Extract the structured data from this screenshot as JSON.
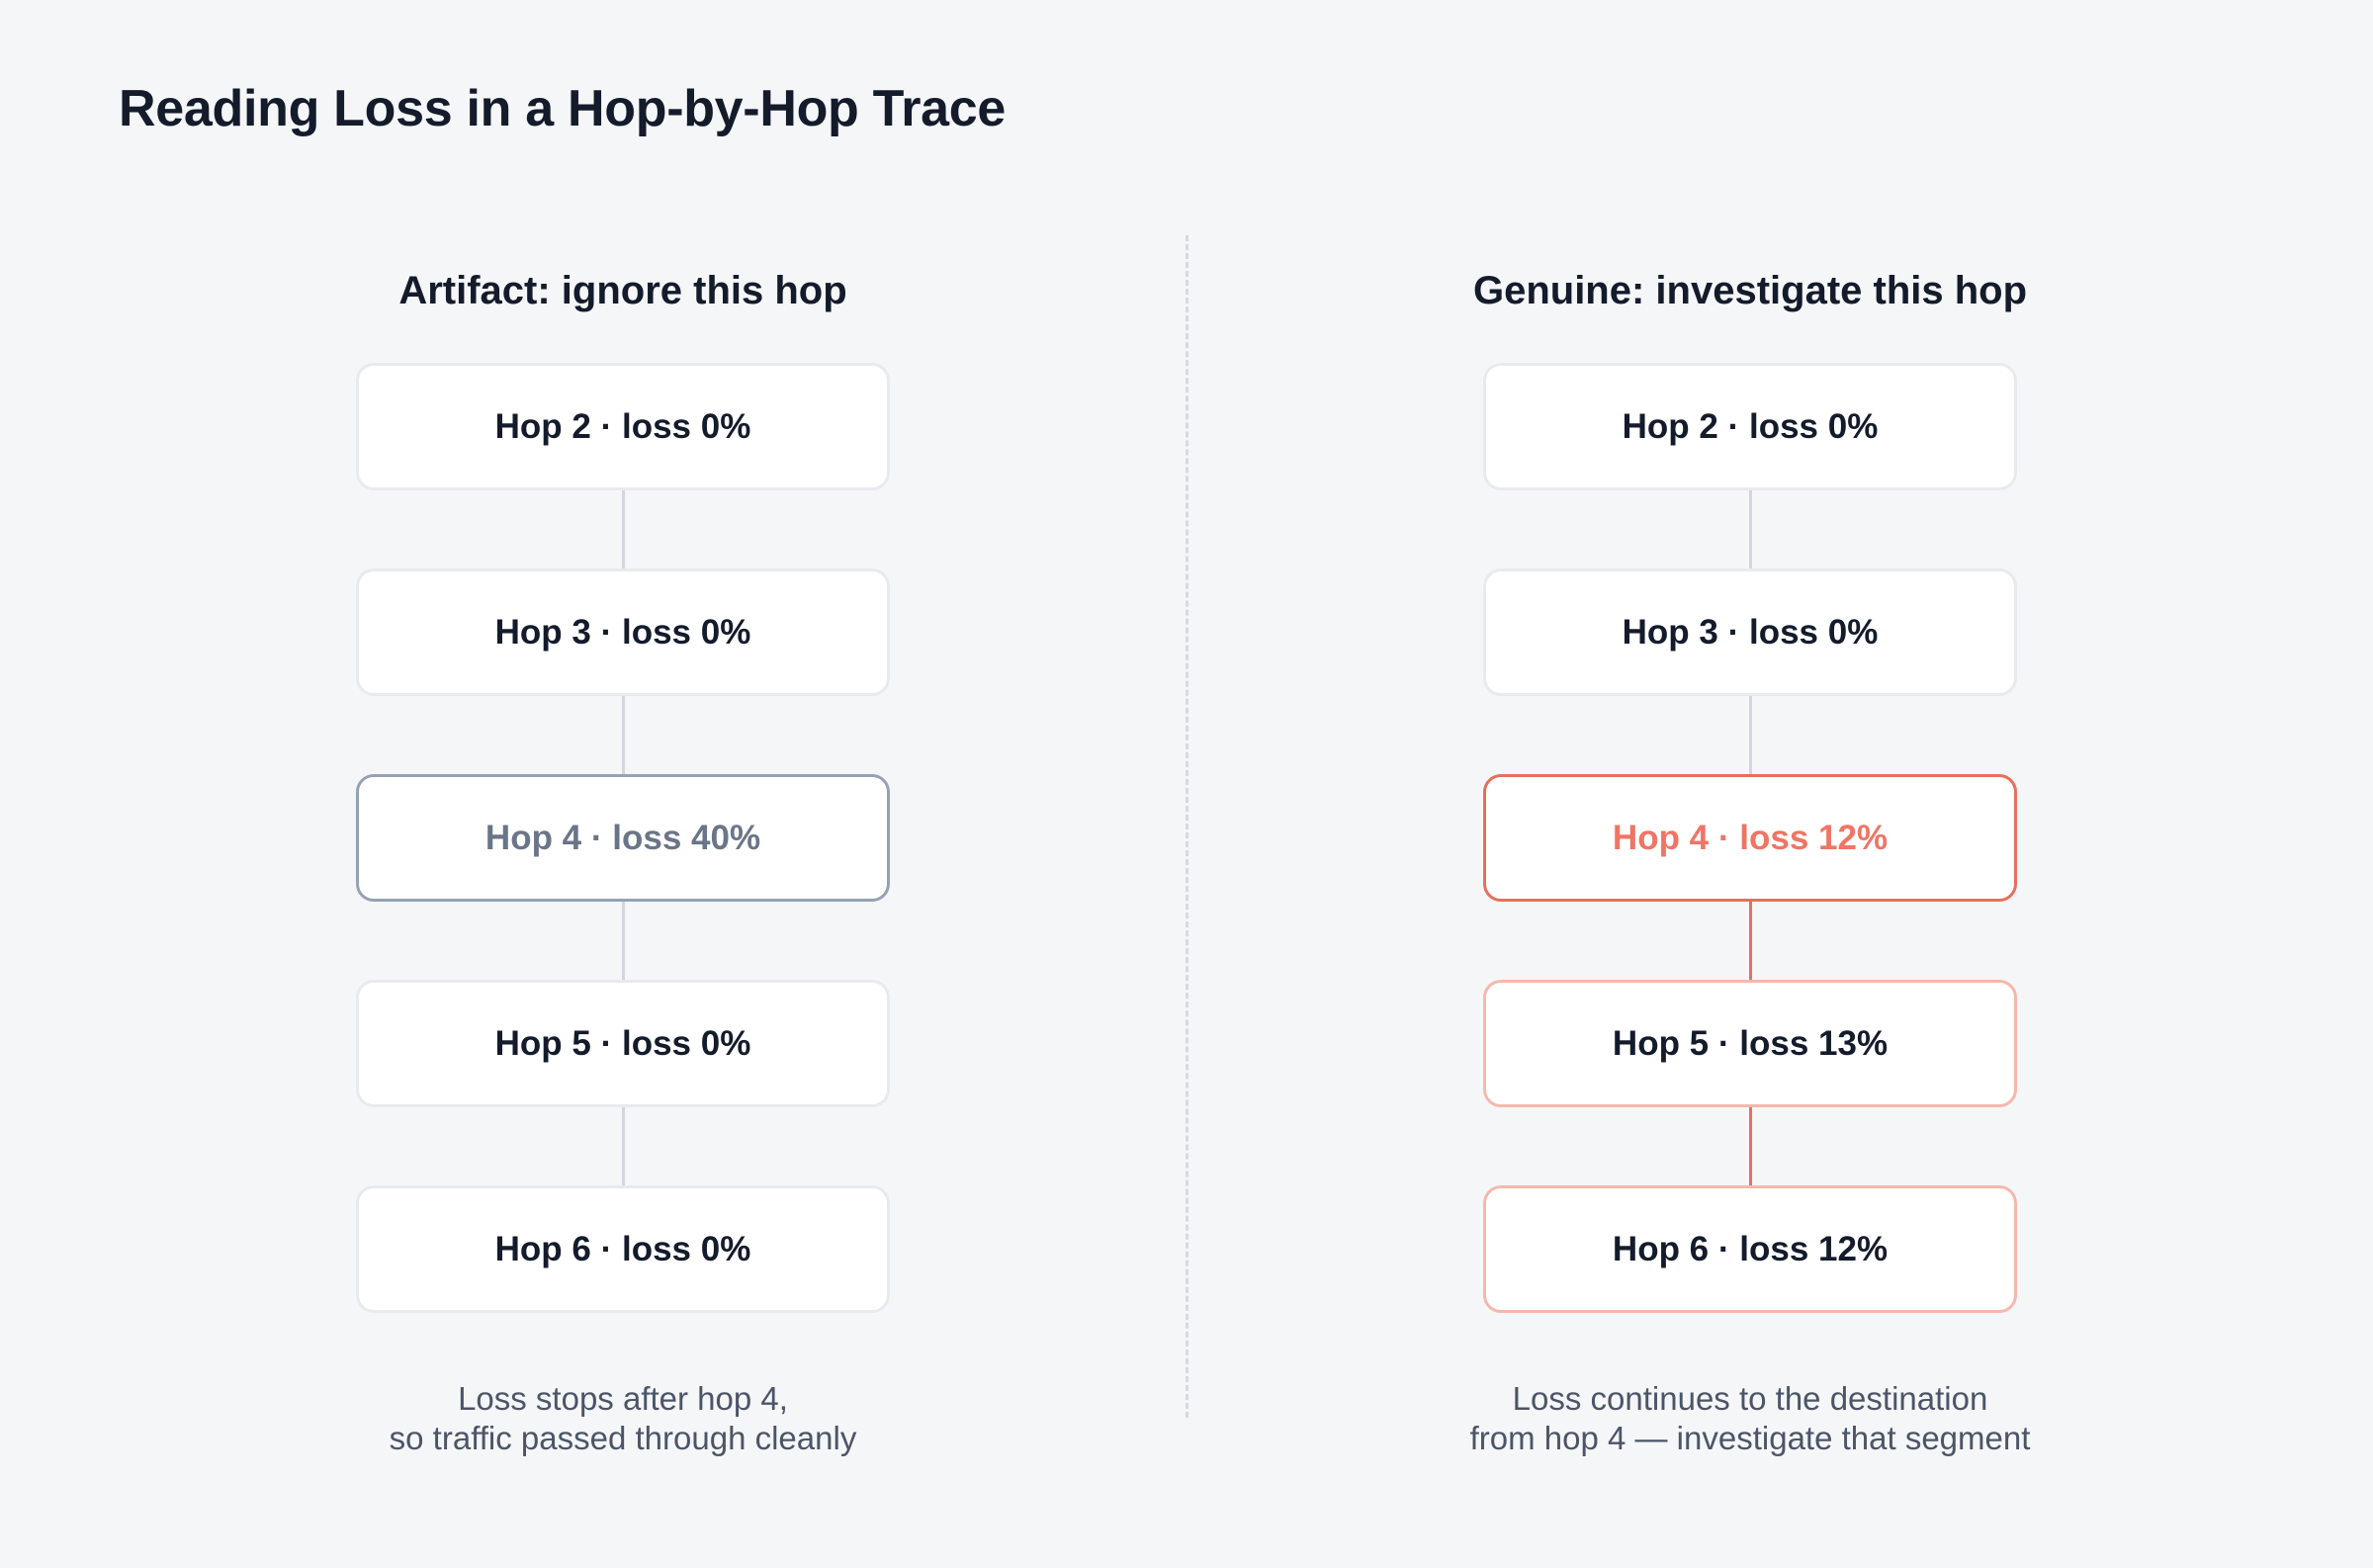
{
  "title": "Reading Loss in a Hop-by-Hop Trace",
  "colors": {
    "background": "#f5f6f8",
    "text": "#141b2b",
    "muted": "#6b7588",
    "alert": "#ef7565",
    "alert_border": "#e86f5c",
    "alert_soft_border": "#f6b8ac",
    "connector": "#d3d6dc"
  },
  "panels": {
    "artifact": {
      "heading": "Artifact: ignore this hop",
      "hops": [
        {
          "label": "Hop 2 · loss 0%"
        },
        {
          "label": "Hop 3 · loss 0%"
        },
        {
          "label": "Hop 4 · loss 40%"
        },
        {
          "label": "Hop 5 · loss 0%"
        },
        {
          "label": "Hop 6 · loss 0%"
        }
      ],
      "caption": [
        "Loss stops after hop 4,",
        "so traffic passed through cleanly"
      ]
    },
    "genuine": {
      "heading": "Genuine: investigate this hop",
      "hops": [
        {
          "label": "Hop 2 · loss 0%"
        },
        {
          "label": "Hop 3 · loss 0%"
        },
        {
          "label": "Hop 4 · loss 12%"
        },
        {
          "label": "Hop 5 · loss 13%"
        },
        {
          "label": "Hop 6 · loss 12%"
        }
      ],
      "caption": [
        "Loss continues to the destination",
        "from hop 4 — investigate that segment"
      ]
    }
  }
}
